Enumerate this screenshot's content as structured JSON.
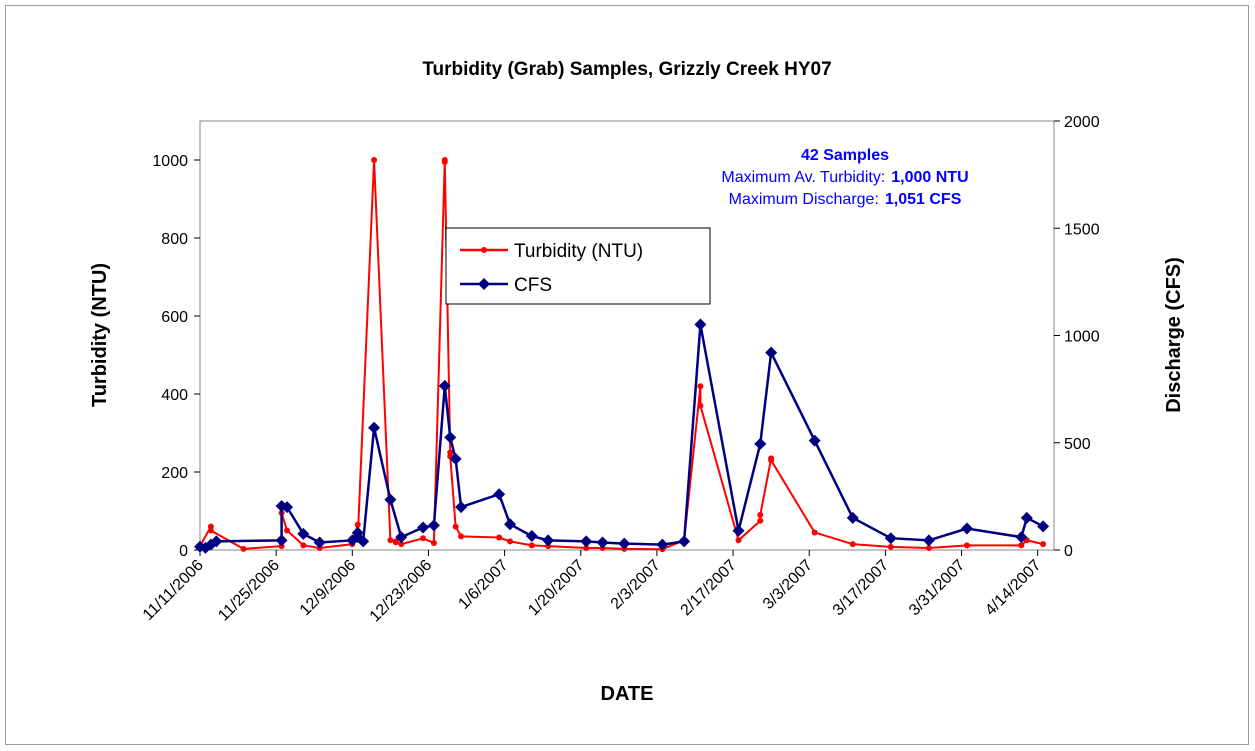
{
  "chart_data": {
    "type": "line",
    "title": "Turbidity (Grab) Samples, Grizzly Creek HY07",
    "x_label": "DATE",
    "y_label": "Turbidity (NTU)",
    "y2_label": "Discharge (CFS)",
    "xlim": [
      "11/11/2006",
      "4/17/2007"
    ],
    "xticks": [
      "11/11/2006",
      "11/25/2006",
      "12/9/2006",
      "12/23/2006",
      "1/6/2007",
      "1/20/2007",
      "2/3/2007",
      "2/17/2007",
      "3/3/2007",
      "3/17/2007",
      "3/31/2007",
      "4/14/2007"
    ],
    "ylim": [
      0,
      1100
    ],
    "yticks": [
      0,
      200,
      400,
      600,
      800,
      1000
    ],
    "y2lim": [
      0,
      2000
    ],
    "y2ticks": [
      0,
      500,
      1000,
      1500,
      2000
    ],
    "legend": "center",
    "annotations": [
      {
        "text": "42 Samples"
      },
      {
        "text": "Maximum Av. Turbidity:",
        "bold": "1,000 NTU"
      },
      {
        "text": "Maximum Discharge:",
        "bold": "1,051 CFS"
      }
    ],
    "series": [
      {
        "name": "Turbidity (NTU)",
        "color": "#ff0000",
        "marker": "circle",
        "x": [
          "11/11/2006",
          "11/13/2006",
          "11/13/2006",
          "11/19/2006",
          "11/26/2006",
          "11/26/2006",
          "11/27/2006",
          "11/30/2006",
          "12/3/2006",
          "12/9/2006",
          "12/10/2006",
          "12/10/2006",
          "12/13/2006",
          "12/16/2006",
          "12/17/2006",
          "12/17/2006",
          "12/18/2006",
          "12/22/2006",
          "12/24/2006",
          "12/26/2006",
          "12/26/2006",
          "12/27/2006",
          "12/27/2006",
          "12/28/2006",
          "12/29/2006",
          "1/5/2007",
          "1/7/2007",
          "1/11/2007",
          "1/14/2007",
          "1/21/2007",
          "1/24/2007",
          "1/28/2007",
          "2/4/2007",
          "2/8/2007",
          "2/11/2007",
          "2/11/2007",
          "2/18/2007",
          "2/22/2007",
          "2/22/2007",
          "2/24/2007",
          "2/24/2007",
          "3/4/2007",
          "3/11/2007",
          "3/18/2007",
          "3/25/2007",
          "4/1/2007",
          "4/11/2007",
          "4/12/2007",
          "4/15/2007"
        ],
        "values": [
          10,
          60,
          50,
          3,
          10,
          95,
          50,
          12,
          5,
          15,
          65,
          30,
          1000,
          25,
          22,
          20,
          15,
          30,
          18,
          1000,
          995,
          250,
          240,
          60,
          35,
          32,
          22,
          12,
          10,
          5,
          5,
          3,
          2,
          25,
          420,
          370,
          25,
          75,
          90,
          235,
          230,
          45,
          15,
          8,
          5,
          12,
          12,
          25,
          15
        ]
      },
      {
        "name": "CFS",
        "color": "#000080",
        "marker": "diamond",
        "axis": "y2",
        "x": [
          "11/11/2006",
          "11/12/2006",
          "11/13/2006",
          "11/14/2006",
          "11/26/2006",
          "11/26/2006",
          "11/27/2006",
          "11/30/2006",
          "12/3/2006",
          "12/9/2006",
          "12/10/2006",
          "12/10/2006",
          "12/11/2006",
          "12/13/2006",
          "12/16/2006",
          "12/18/2006",
          "12/22/2006",
          "12/24/2006",
          "12/26/2006",
          "12/27/2006",
          "12/28/2006",
          "12/29/2006",
          "1/5/2007",
          "1/7/2007",
          "1/11/2007",
          "1/14/2007",
          "1/21/2007",
          "1/24/2007",
          "1/28/2007",
          "2/4/2007",
          "2/8/2007",
          "2/11/2007",
          "2/18/2007",
          "2/22/2007",
          "2/24/2007",
          "3/4/2007",
          "3/11/2007",
          "3/18/2007",
          "3/25/2007",
          "4/1/2007",
          "4/11/2007",
          "4/12/2007",
          "4/15/2007"
        ],
        "values": [
          15,
          10,
          25,
          40,
          45,
          205,
          200,
          75,
          35,
          45,
          80,
          60,
          40,
          570,
          235,
          60,
          105,
          115,
          765,
          525,
          425,
          200,
          260,
          120,
          65,
          45,
          40,
          35,
          30,
          25,
          40,
          1051,
          90,
          495,
          920,
          510,
          150,
          55,
          45,
          100,
          60,
          150,
          110
        ]
      }
    ]
  }
}
